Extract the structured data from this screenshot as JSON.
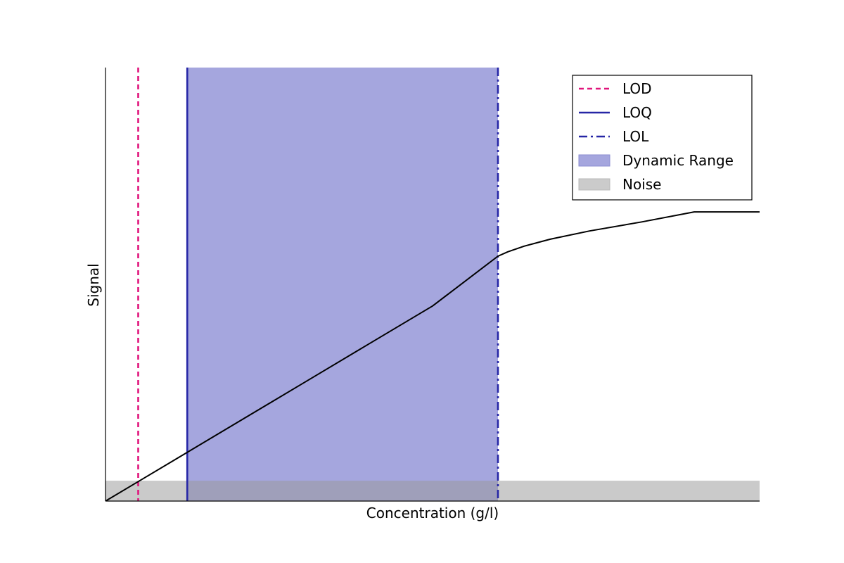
{
  "chart_data": {
    "type": "line",
    "title": "",
    "xlabel": "Concentration (g/l)",
    "ylabel": "Signal",
    "xlim": [
      0,
      100
    ],
    "ylim": [
      0,
      100
    ],
    "ticks_visible": false,
    "grid": false,
    "legend_position": "top-right",
    "colors": {
      "lod": "#e0157c",
      "loq": "#2626a6",
      "lol": "#2626a6",
      "dynamic_range": "#a5a6de",
      "noise": "#cbcbcb",
      "curve": "#000000"
    },
    "series": [
      {
        "name": "calibration-curve",
        "x": [
          0,
          5,
          10,
          20,
          30,
          40,
          50,
          60,
          61.5,
          64,
          68,
          74,
          82,
          90,
          100
        ],
        "y": [
          0,
          4.5,
          9,
          18,
          27,
          36,
          45,
          56.5,
          57.5,
          58.8,
          60.4,
          62.3,
          64.4,
          66.7,
          66.7
        ]
      }
    ],
    "noise_band": [
      0,
      4.7
    ],
    "dynamic_range": [
      12.5,
      60
    ],
    "lines": [
      {
        "name": "LOD",
        "x": 5,
        "style": "dashed"
      },
      {
        "name": "LOQ",
        "x": 12.5,
        "style": "solid"
      },
      {
        "name": "LOL",
        "x": 60,
        "style": "dashdot"
      }
    ],
    "legend": [
      {
        "label": "LOD",
        "kind": "line",
        "style": "dashed",
        "color_key": "lod"
      },
      {
        "label": "LOQ",
        "kind": "line",
        "style": "solid",
        "color_key": "loq"
      },
      {
        "label": "LOL",
        "kind": "line",
        "style": "dashdot",
        "color_key": "lol"
      },
      {
        "label": "Dynamic Range",
        "kind": "patch",
        "color_key": "dynamic_range"
      },
      {
        "label": "Noise",
        "kind": "patch",
        "color_key": "noise"
      }
    ]
  }
}
